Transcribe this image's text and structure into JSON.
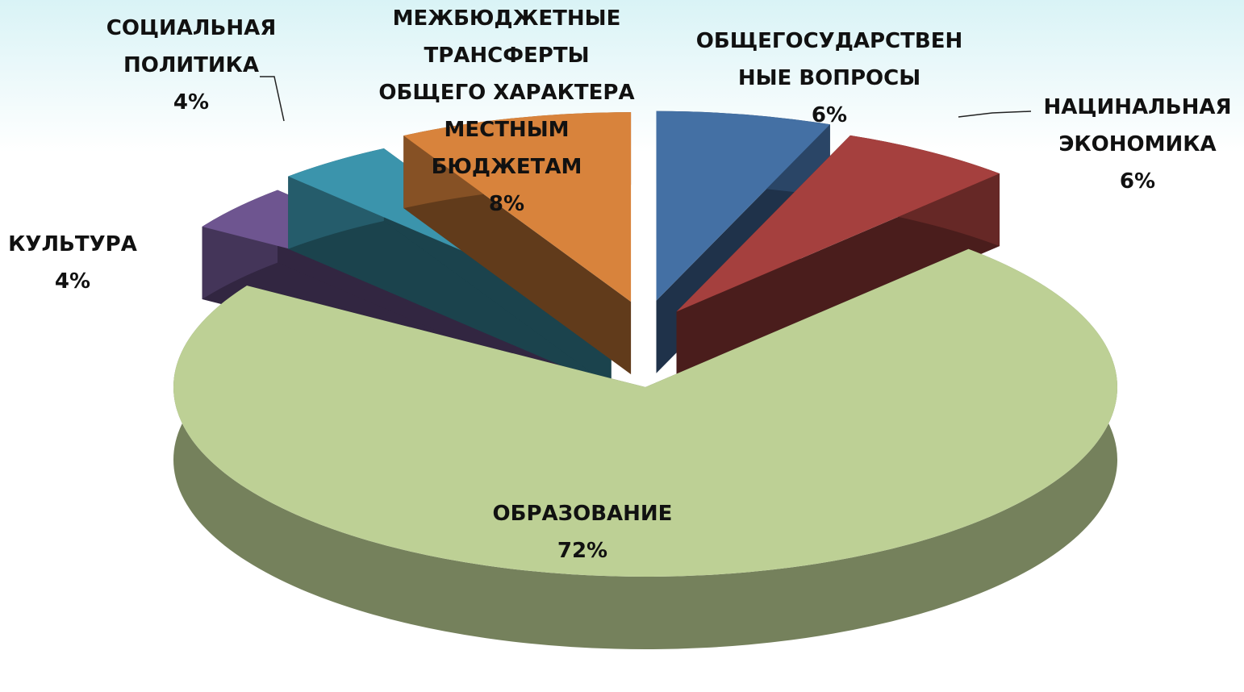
{
  "chart_data": {
    "type": "pie",
    "categories": [
      "ОБЩЕГОСУДАРСТВЕННЫЕ ВОПРОСЫ",
      "НАЦИНАЛЬНАЯ ЭКОНОМИКА",
      "ОБРАЗОВАНИЕ",
      "КУЛЬТУРА",
      "СОЦИАЛЬНАЯ ПОЛИТИКА",
      "МЕЖБЮДЖЕТНЫЕ ТРАНСФЕРТЫ ОБЩЕГО ХАРАКТЕРА МЕСТНЫМ БЮДЖЕТАМ"
    ],
    "values": [
      6,
      6,
      72,
      4,
      4,
      8
    ],
    "value_labels": [
      "6%",
      "6%",
      "72%",
      "4%",
      "4%",
      "8%"
    ],
    "colors": [
      "#4470a4",
      "#a5403e",
      "#bdd095",
      "#6e5590",
      "#3b94ac",
      "#d8833c"
    ]
  }
}
